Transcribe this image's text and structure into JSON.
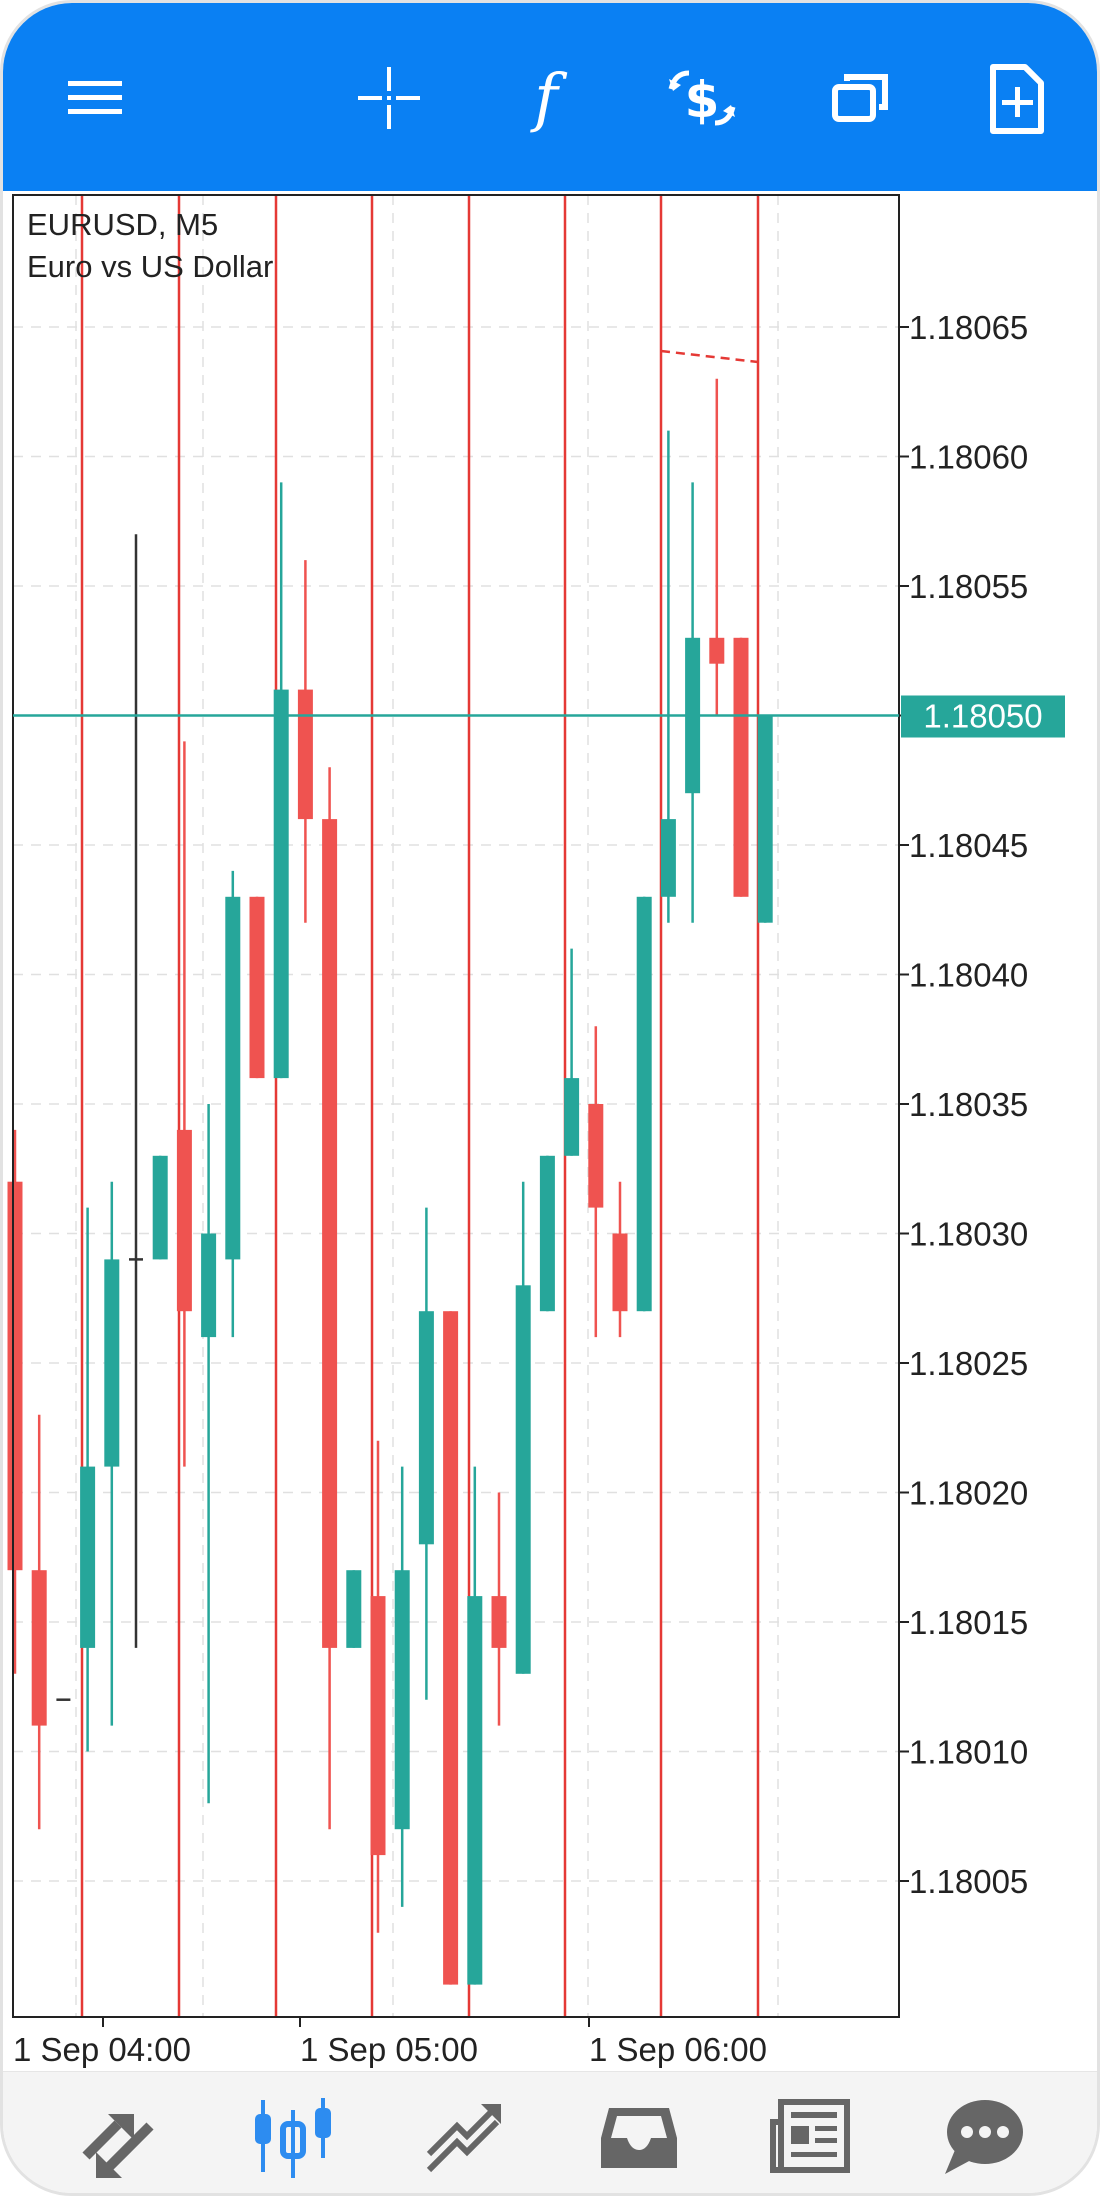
{
  "toolbar": {
    "buttons": [
      {
        "name": "menu-icon"
      },
      {
        "name": "crosshair-icon"
      },
      {
        "name": "indicators-icon"
      },
      {
        "name": "trade-icon"
      },
      {
        "name": "window-icon"
      },
      {
        "name": "new-object-icon"
      }
    ]
  },
  "chart": {
    "symbol_line": "EURUSD, M5",
    "description": "Euro vs US Dollar",
    "current_price": "1.18050"
  },
  "colors": {
    "toolbar_bg": "#0a80f3",
    "bull": "#26a69a",
    "bear": "#ef5350",
    "vline": "#e53935",
    "bid_line": "#26a69a",
    "grid": "#e0e0e0"
  },
  "bottom_nav": [
    {
      "name": "quotes-icon",
      "active": false
    },
    {
      "name": "chart-icon",
      "active": true
    },
    {
      "name": "trade-icon",
      "active": false
    },
    {
      "name": "history-icon",
      "active": false
    },
    {
      "name": "news-icon",
      "active": false
    },
    {
      "name": "chat-icon",
      "active": false
    }
  ],
  "chart_data": {
    "type": "candlestick",
    "title": "EURUSD, M5",
    "subtitle": "Euro vs US Dollar",
    "ylim": [
      1.18,
      1.1807
    ],
    "yticks": [
      "1.18065",
      "1.18060",
      "1.18055",
      "1.18050",
      "1.18045",
      "1.18040",
      "1.18035",
      "1.18030",
      "1.18025",
      "1.18020",
      "1.18015",
      "1.18010",
      "1.18005"
    ],
    "xticks": [
      "1 Sep 04:00",
      "1 Sep 05:00",
      "1 Sep 06:00"
    ],
    "bid": 1.1805,
    "candles": [
      {
        "o": 1.18032,
        "h": 1.18034,
        "l": 1.18013,
        "c": 1.18017
      },
      {
        "o": 1.18017,
        "h": 1.18023,
        "l": 1.18007,
        "c": 1.18011
      },
      {
        "o": 1.18012,
        "h": 1.18012,
        "l": 1.18012,
        "c": 1.18012
      },
      {
        "o": 1.18014,
        "h": 1.18031,
        "l": 1.1801,
        "c": 1.18021
      },
      {
        "o": 1.18021,
        "h": 1.18032,
        "l": 1.18011,
        "c": 1.18029
      },
      {
        "o": 1.18029,
        "h": 1.18057,
        "l": 1.18014,
        "c": 1.18029
      },
      {
        "o": 1.18029,
        "h": 1.18033,
        "l": 1.18029,
        "c": 1.18033
      },
      {
        "o": 1.18034,
        "h": 1.18049,
        "l": 1.18021,
        "c": 1.18027
      },
      {
        "o": 1.18026,
        "h": 1.18035,
        "l": 1.18008,
        "c": 1.1803
      },
      {
        "o": 1.18029,
        "h": 1.18044,
        "l": 1.18026,
        "c": 1.18043
      },
      {
        "o": 1.18043,
        "h": 1.18043,
        "l": 1.18036,
        "c": 1.18036
      },
      {
        "o": 1.18036,
        "h": 1.18059,
        "l": 1.18036,
        "c": 1.18051
      },
      {
        "o": 1.18051,
        "h": 1.18056,
        "l": 1.18042,
        "c": 1.18046
      },
      {
        "o": 1.18046,
        "h": 1.18048,
        "l": 1.18007,
        "c": 1.18014
      },
      {
        "o": 1.18014,
        "h": 1.18017,
        "l": 1.18014,
        "c": 1.18017
      },
      {
        "o": 1.18016,
        "h": 1.18022,
        "l": 1.18003,
        "c": 1.18006
      },
      {
        "o": 1.18007,
        "h": 1.18021,
        "l": 1.18004,
        "c": 1.18017
      },
      {
        "o": 1.18018,
        "h": 1.18031,
        "l": 1.18012,
        "c": 1.18027
      },
      {
        "o": 1.18027,
        "h": 1.18027,
        "l": 1.18001,
        "c": 1.18001
      },
      {
        "o": 1.18001,
        "h": 1.18021,
        "l": 1.18001,
        "c": 1.18016
      },
      {
        "o": 1.18016,
        "h": 1.1802,
        "l": 1.18011,
        "c": 1.18014
      },
      {
        "o": 1.18013,
        "h": 1.18032,
        "l": 1.18013,
        "c": 1.18028
      },
      {
        "o": 1.18027,
        "h": 1.18033,
        "l": 1.18027,
        "c": 1.18033
      },
      {
        "o": 1.18033,
        "h": 1.18041,
        "l": 1.18033,
        "c": 1.18036
      },
      {
        "o": 1.18035,
        "h": 1.18038,
        "l": 1.18026,
        "c": 1.18031
      },
      {
        "o": 1.1803,
        "h": 1.18032,
        "l": 1.18026,
        "c": 1.18027
      },
      {
        "o": 1.18027,
        "h": 1.18043,
        "l": 1.18027,
        "c": 1.18043
      },
      {
        "o": 1.18043,
        "h": 1.18061,
        "l": 1.18042,
        "c": 1.18046
      },
      {
        "o": 1.18047,
        "h": 1.18059,
        "l": 1.18042,
        "c": 1.18053
      },
      {
        "o": 1.18053,
        "h": 1.18063,
        "l": 1.1805,
        "c": 1.18052
      },
      {
        "o": 1.18053,
        "h": 1.18053,
        "l": 1.18043,
        "c": 1.18043
      },
      {
        "o": 1.18042,
        "h": 1.1805,
        "l": 1.18042,
        "c": 1.1805
      }
    ]
  }
}
